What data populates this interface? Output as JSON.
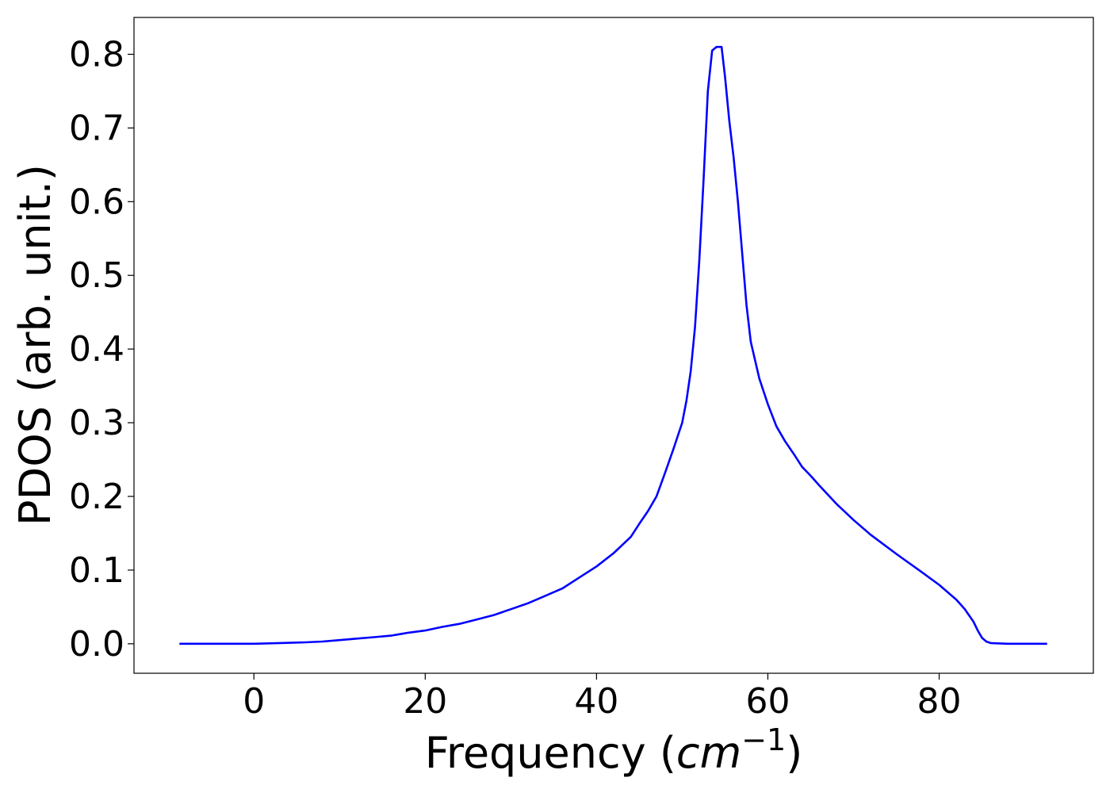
{
  "chart_data": {
    "type": "line",
    "title": "",
    "xlabel": "Frequency (cm⁻¹)",
    "xlabel_parts": {
      "prefix": "Frequency (",
      "math": "cm",
      "superscript": "−1",
      "suffix": ")"
    },
    "ylabel": "PDOS (arb. unit.)",
    "xlim": [
      -14,
      98
    ],
    "ylim": [
      -0.04,
      0.85
    ],
    "xticks": [
      0,
      20,
      40,
      60,
      80
    ],
    "xtick_labels": [
      "0",
      "20",
      "40",
      "60",
      "80"
    ],
    "yticks": [
      0.0,
      0.1,
      0.2,
      0.3,
      0.4,
      0.5,
      0.6,
      0.7,
      0.8
    ],
    "ytick_labels": [
      "0.0",
      "0.1",
      "0.2",
      "0.3",
      "0.4",
      "0.5",
      "0.6",
      "0.7",
      "0.8"
    ],
    "grid": false,
    "series": [
      {
        "color": "#0000ff",
        "x": [
          -8.7,
          -5,
          0,
          3,
          6,
          8,
          10,
          12,
          14,
          16,
          18,
          20,
          22,
          24,
          26,
          28,
          30,
          32,
          34,
          36,
          38,
          40,
          42,
          44,
          45,
          46,
          47,
          48,
          49,
          50,
          50.5,
          51,
          51.5,
          52,
          52.5,
          53,
          53.5,
          54,
          54.6,
          55,
          55.5,
          56,
          56.5,
          57,
          57.5,
          58,
          59,
          60,
          61,
          62,
          63,
          64,
          65,
          66,
          68,
          70,
          72,
          75,
          78,
          80,
          82,
          83,
          84,
          84.5,
          85,
          85.5,
          86,
          88,
          92.6
        ],
        "y": [
          0.0,
          0.0,
          0.0,
          0.001,
          0.002,
          0.003,
          0.005,
          0.007,
          0.009,
          0.011,
          0.015,
          0.018,
          0.023,
          0.027,
          0.033,
          0.039,
          0.047,
          0.055,
          0.065,
          0.075,
          0.09,
          0.105,
          0.123,
          0.145,
          0.163,
          0.18,
          0.2,
          0.232,
          0.265,
          0.3,
          0.33,
          0.37,
          0.43,
          0.52,
          0.63,
          0.75,
          0.805,
          0.81,
          0.81,
          0.77,
          0.71,
          0.66,
          0.6,
          0.53,
          0.46,
          0.41,
          0.36,
          0.325,
          0.295,
          0.275,
          0.258,
          0.24,
          0.228,
          0.215,
          0.19,
          0.168,
          0.148,
          0.122,
          0.097,
          0.08,
          0.06,
          0.047,
          0.03,
          0.018,
          0.008,
          0.003,
          0.001,
          0.0,
          0.0
        ]
      }
    ]
  }
}
